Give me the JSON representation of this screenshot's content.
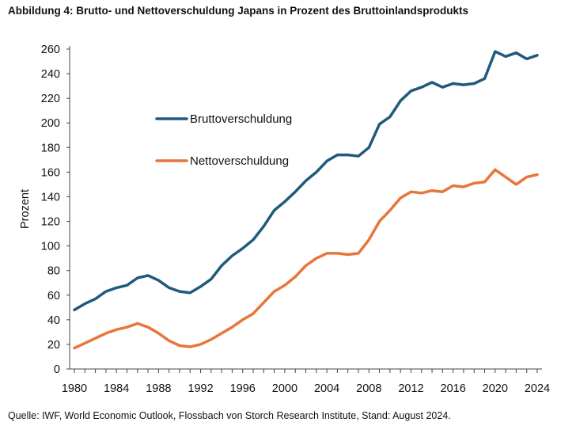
{
  "header": {
    "title": "Abbildung 4: Brutto- und Nettoverschuldung Japans in Prozent des Bruttoinlandsprodukts"
  },
  "footer": {
    "source": "Quelle: IWF, World Economic Outlook, Flossbach von Storch Research Institute, Stand: August 2024."
  },
  "chart_data": {
    "type": "line",
    "title": "Abbildung 4: Brutto- und Nettoverschuldung Japans in Prozent des Bruttoinlandsprodukts",
    "xlabel": "",
    "ylabel": "Prozent",
    "xlim": [
      1980,
      2024
    ],
    "ylim": [
      0,
      260
    ],
    "x_ticks": [
      1980,
      1984,
      1988,
      1992,
      1996,
      2000,
      2004,
      2008,
      2012,
      2016,
      2020,
      2024
    ],
    "y_ticks": [
      0,
      20,
      40,
      60,
      80,
      100,
      120,
      140,
      160,
      180,
      200,
      220,
      240,
      260
    ],
    "grid": false,
    "legend_position": "upper-left-inside",
    "x": [
      1980,
      1981,
      1982,
      1983,
      1984,
      1985,
      1986,
      1987,
      1988,
      1989,
      1990,
      1991,
      1992,
      1993,
      1994,
      1995,
      1996,
      1997,
      1998,
      1999,
      2000,
      2001,
      2002,
      2003,
      2004,
      2005,
      2006,
      2007,
      2008,
      2009,
      2010,
      2011,
      2012,
      2013,
      2014,
      2015,
      2016,
      2017,
      2018,
      2019,
      2020,
      2021,
      2022,
      2023,
      2024
    ],
    "series": [
      {
        "name": "Bruttoverschuldung",
        "color": "#1f5a7e",
        "values": [
          48,
          53,
          57,
          63,
          66,
          68,
          74,
          76,
          72,
          66,
          63,
          62,
          67,
          73,
          84,
          92,
          98,
          105,
          116,
          129,
          136,
          144,
          153,
          160,
          169,
          174,
          174,
          173,
          180,
          199,
          205,
          218,
          226,
          229,
          233,
          229,
          232,
          231,
          232,
          236,
          258,
          254,
          257,
          252,
          255
        ]
      },
      {
        "name": "Nettoverschuldung",
        "color": "#e8763a",
        "values": [
          17,
          21,
          25,
          29,
          32,
          34,
          37,
          34,
          29,
          23,
          19,
          18,
          20,
          24,
          29,
          34,
          40,
          45,
          54,
          63,
          68,
          75,
          84,
          90,
          94,
          94,
          93,
          94,
          105,
          120,
          129,
          139,
          144,
          143,
          145,
          144,
          149,
          148,
          151,
          152,
          162,
          156,
          150,
          156,
          158
        ]
      }
    ]
  }
}
